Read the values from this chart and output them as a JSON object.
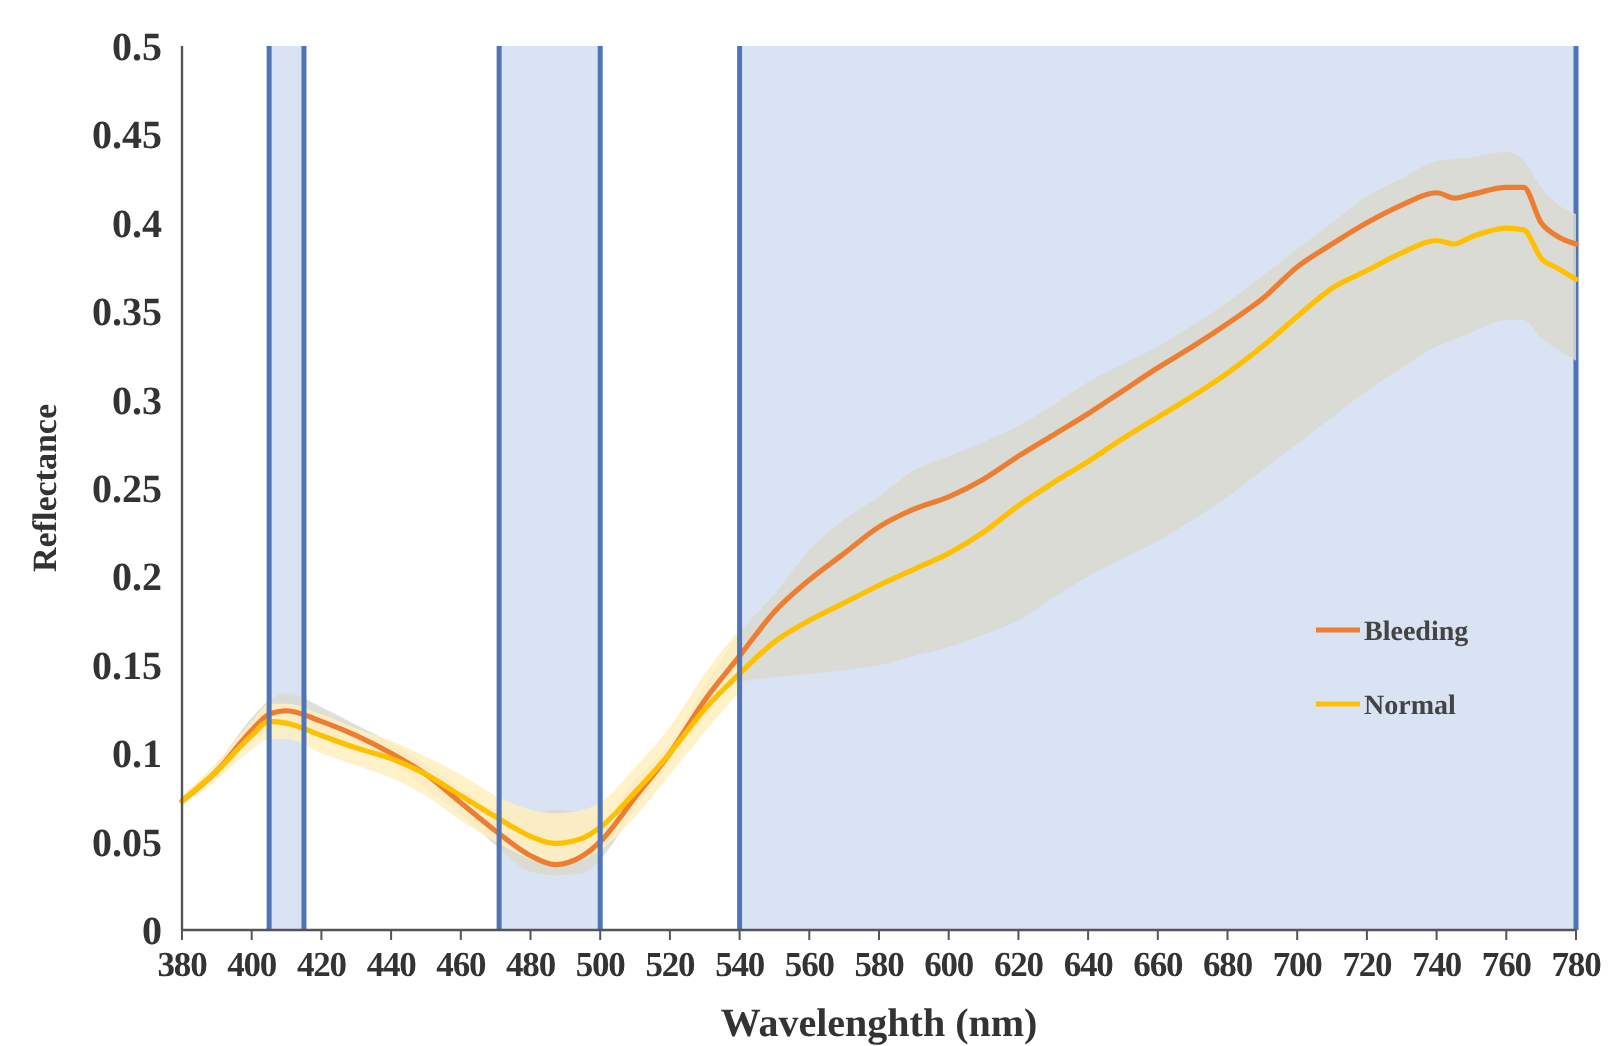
{
  "chart_data": {
    "type": "line",
    "xlabel": "Wavelenghth (nm)",
    "ylabel": "Reflectance",
    "x": [
      380,
      390,
      400,
      405,
      410,
      420,
      430,
      440,
      450,
      460,
      470,
      480,
      487,
      495,
      500,
      510,
      520,
      530,
      540,
      550,
      560,
      570,
      580,
      590,
      600,
      610,
      620,
      630,
      640,
      650,
      660,
      670,
      680,
      690,
      700,
      710,
      720,
      730,
      740,
      745,
      750,
      760,
      765,
      770,
      775,
      780
    ],
    "series": [
      {
        "name": "Bleeding",
        "color": "#ed7d31",
        "values": [
          0.073,
          0.09,
          0.113,
          0.122,
          0.124,
          0.118,
          0.11,
          0.1,
          0.088,
          0.072,
          0.056,
          0.042,
          0.037,
          0.042,
          0.05,
          0.075,
          0.1,
          0.13,
          0.155,
          0.18,
          0.198,
          0.213,
          0.228,
          0.238,
          0.245,
          0.255,
          0.268,
          0.28,
          0.292,
          0.305,
          0.318,
          0.33,
          0.343,
          0.357,
          0.375,
          0.388,
          0.4,
          0.41,
          0.417,
          0.414,
          0.416,
          0.42,
          0.42,
          0.4,
          0.392,
          0.388
        ],
        "lower": [
          0.071,
          0.086,
          0.108,
          0.113,
          0.116,
          0.112,
          0.104,
          0.095,
          0.08,
          0.065,
          0.048,
          0.033,
          0.031,
          0.032,
          0.04,
          0.068,
          0.095,
          0.12,
          0.14,
          0.143,
          0.145,
          0.147,
          0.15,
          0.155,
          0.16,
          0.167,
          0.175,
          0.188,
          0.2,
          0.21,
          0.22,
          0.232,
          0.245,
          0.26,
          0.275,
          0.29,
          0.305,
          0.318,
          0.33,
          0.334,
          0.338,
          0.345,
          0.345,
          0.335,
          0.328,
          0.322
        ],
        "upper": [
          0.075,
          0.094,
          0.12,
          0.13,
          0.134,
          0.126,
          0.116,
          0.106,
          0.094,
          0.08,
          0.068,
          0.066,
          0.068,
          0.066,
          0.062,
          0.085,
          0.105,
          0.138,
          0.168,
          0.19,
          0.215,
          0.232,
          0.245,
          0.26,
          0.268,
          0.276,
          0.285,
          0.297,
          0.31,
          0.32,
          0.33,
          0.342,
          0.355,
          0.37,
          0.385,
          0.4,
          0.415,
          0.425,
          0.435,
          0.436,
          0.437,
          0.44,
          0.435,
          0.42,
          0.41,
          0.405
        ]
      },
      {
        "name": "Normal",
        "color": "#ffc000",
        "values": [
          0.073,
          0.09,
          0.11,
          0.118,
          0.117,
          0.11,
          0.103,
          0.097,
          0.088,
          0.076,
          0.064,
          0.053,
          0.049,
          0.052,
          0.058,
          0.078,
          0.1,
          0.125,
          0.145,
          0.163,
          0.175,
          0.185,
          0.195,
          0.204,
          0.213,
          0.225,
          0.24,
          0.253,
          0.265,
          0.278,
          0.29,
          0.302,
          0.315,
          0.33,
          0.347,
          0.363,
          0.373,
          0.383,
          0.39,
          0.388,
          0.392,
          0.397,
          0.396,
          0.38,
          0.374,
          0.368
        ],
        "lower": [
          0.07,
          0.085,
          0.102,
          0.108,
          0.108,
          0.1,
          0.093,
          0.086,
          0.076,
          0.062,
          0.05,
          0.04,
          0.037,
          0.04,
          0.045,
          0.064,
          0.088,
          0.112,
          0.135,
          null,
          null,
          null,
          null,
          null,
          null,
          null,
          null,
          null,
          null,
          null,
          null,
          null,
          null,
          null,
          null,
          null,
          null,
          null,
          null,
          null,
          null,
          null,
          null,
          null,
          null,
          null
        ],
        "upper": [
          0.076,
          0.095,
          0.118,
          0.128,
          0.128,
          0.122,
          0.114,
          0.107,
          0.098,
          0.088,
          0.076,
          0.068,
          0.066,
          0.068,
          0.072,
          0.092,
          0.115,
          0.145,
          0.17,
          null,
          null,
          null,
          null,
          null,
          null,
          null,
          null,
          null,
          null,
          null,
          null,
          null,
          null,
          null,
          null,
          null,
          null,
          null,
          null,
          null,
          null,
          null,
          null,
          null,
          null,
          null
        ]
      }
    ],
    "bands": [
      {
        "axis": "x",
        "from": 405,
        "to": 415,
        "color": "#dae3f3"
      },
      {
        "axis": "x",
        "from": 471,
        "to": 500,
        "color": "#dae3f3"
      },
      {
        "axis": "x",
        "from": 540,
        "to": 780,
        "color": "#dae3f3"
      }
    ],
    "ref_lines": [
      {
        "axis": "x",
        "value": 405,
        "color": "#4f75b8"
      },
      {
        "axis": "x",
        "value": 415,
        "color": "#4f75b8"
      },
      {
        "axis": "x",
        "value": 471,
        "color": "#4f75b8"
      },
      {
        "axis": "x",
        "value": 500,
        "color": "#4f75b8"
      },
      {
        "axis": "x",
        "value": 540,
        "color": "#4f75b8"
      }
    ],
    "xlim": [
      380,
      780
    ],
    "xticks": [
      380,
      400,
      420,
      440,
      460,
      480,
      500,
      520,
      540,
      560,
      580,
      600,
      620,
      640,
      660,
      680,
      700,
      720,
      740,
      760,
      780
    ],
    "ylim": [
      0,
      0.5
    ],
    "yticks": [
      0,
      0.05,
      0.1,
      0.15,
      0.2,
      0.25,
      0.3,
      0.35,
      0.4,
      0.45,
      0.5
    ],
    "grid": false,
    "legend": "bottom right"
  }
}
